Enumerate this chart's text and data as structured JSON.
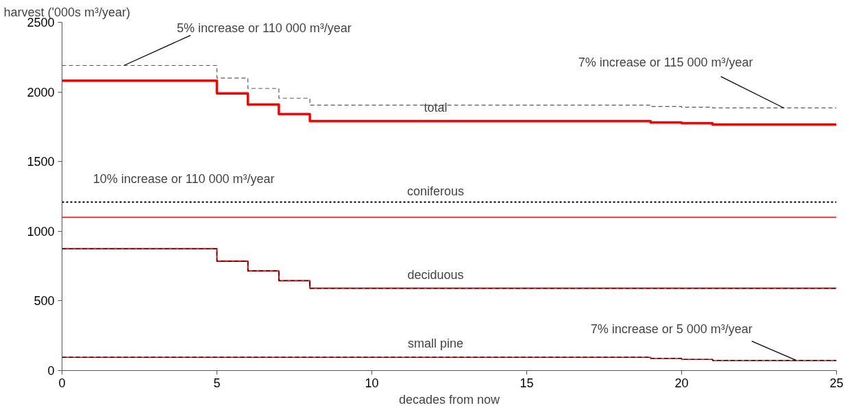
{
  "chart_data": {
    "type": "step",
    "xlabel": "decades from now",
    "ylabel": "harvest ('000s m³/year)",
    "x": [
      0,
      5,
      6,
      7,
      8,
      19,
      20,
      21,
      25
    ],
    "series": [
      {
        "name": "total",
        "color": "#ff0000",
        "values": [
          2080,
          1990,
          1910,
          1840,
          1790,
          1780,
          1775,
          1765,
          1765
        ],
        "line_style": "solid"
      },
      {
        "color": "#595959",
        "values": [
          2190,
          2100,
          2025,
          1955,
          1905,
          1895,
          1890,
          1885,
          1885
        ],
        "line_style": "dashed"
      },
      {
        "name": "coniferous",
        "color": "#ff0000",
        "values": [
          1100,
          1100,
          1100,
          1100,
          1100,
          1100,
          1100,
          1100,
          1100
        ],
        "line_style": "solid"
      },
      {
        "color": "#000000",
        "values": [
          1210,
          1210,
          1210,
          1210,
          1210,
          1210,
          1210,
          1210,
          1210
        ],
        "line_style": "dotted"
      },
      {
        "name": "deciduous",
        "color": "#ff0000",
        "values": [
          875,
          785,
          715,
          645,
          590,
          590,
          590,
          590,
          590
        ],
        "line_style": "solid"
      },
      {
        "color": "#000000",
        "values": [
          875,
          785,
          715,
          645,
          590,
          590,
          590,
          590,
          590
        ],
        "line_style": "dashed"
      },
      {
        "name": "small pine",
        "color": "#ff0000",
        "x": [
          0,
          19,
          20,
          21,
          25
        ],
        "values": [
          95,
          86,
          80,
          71,
          71
        ],
        "line_style": "solid"
      },
      {
        "color": "#000000",
        "x": [
          0,
          19,
          20,
          21,
          25
        ],
        "values": [
          95,
          88,
          80,
          73,
          73
        ],
        "line_style": "dashed"
      }
    ],
    "xlim": [
      0,
      25
    ],
    "xticks": [
      0,
      5,
      10,
      15,
      20,
      25
    ],
    "ylim": [
      0,
      2500
    ],
    "yticks": [
      0,
      500,
      1000,
      1500,
      2000,
      2500
    ],
    "grid": false,
    "legend": false,
    "marker": "none",
    "annotations": [
      {
        "text": "5% increase or 110 000 m³/year",
        "x": 2,
        "y": 2190
      },
      {
        "text": "7% increase or 115 000 m³/year",
        "x": 23.3,
        "y": 1885
      },
      {
        "text": "10% increase or 110 000 m³/year",
        "x": 1,
        "y": 1210
      },
      {
        "text": "7% increase or 5 000 m³/year",
        "x": 23.7,
        "y": 73
      }
    ]
  }
}
